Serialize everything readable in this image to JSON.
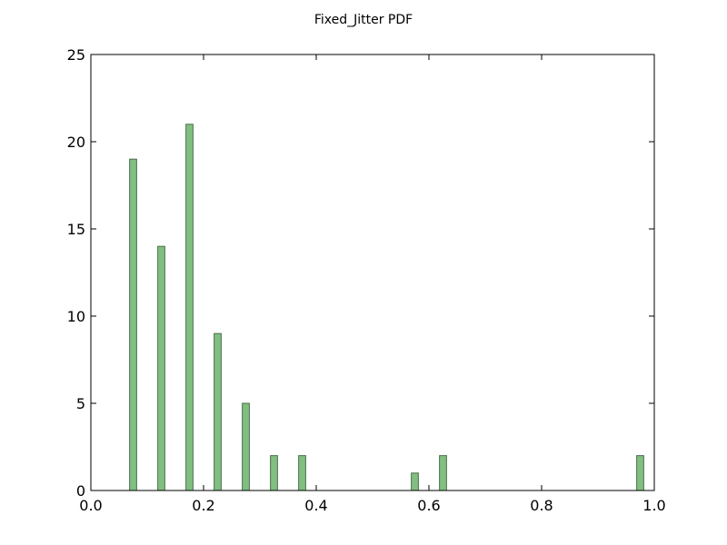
{
  "chart_data": {
    "type": "bar",
    "title": "Fixed_Jitter PDF",
    "xlabel": "",
    "ylabel": "",
    "xlim": [
      0.0,
      1.0
    ],
    "ylim": [
      0,
      25
    ],
    "bin_width": 0.0125,
    "x": [
      0.075,
      0.125,
      0.175,
      0.225,
      0.275,
      0.325,
      0.375,
      0.425,
      0.475,
      0.525,
      0.575,
      0.625,
      0.675,
      0.725,
      0.775,
      0.825,
      0.875,
      0.925,
      0.975
    ],
    "values": [
      19,
      14,
      21,
      9,
      5,
      2,
      2,
      0,
      0,
      0,
      1,
      2,
      0,
      0,
      0,
      0,
      0,
      0,
      2
    ],
    "xticks": [
      "0.0",
      "0.2",
      "0.4",
      "0.6",
      "0.8",
      "1.0"
    ],
    "yticks": [
      "0",
      "5",
      "10",
      "15",
      "20",
      "25"
    ],
    "grid": false,
    "colors": {
      "bar_fill": "#80bf80",
      "bar_edge": "#4d6e4d"
    }
  }
}
